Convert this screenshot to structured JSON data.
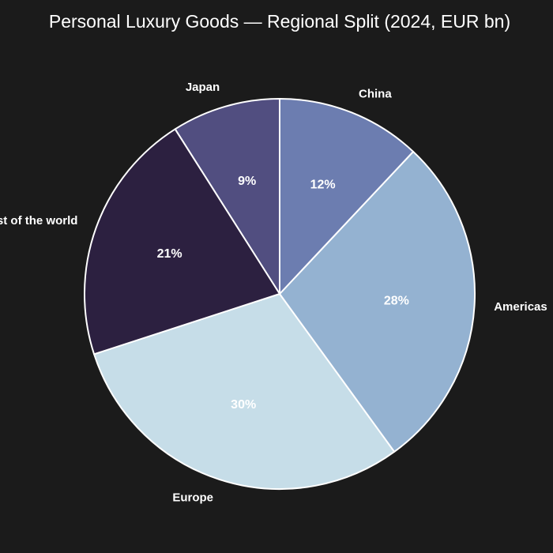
{
  "chart_data": {
    "type": "pie",
    "title": "Personal Luxury Goods — Regional Split (2024, EUR bn)",
    "slices": [
      {
        "label": "Europe",
        "value": 30,
        "pct_label": "30%",
        "color": "#c6dde8"
      },
      {
        "label": "Americas",
        "value": 28,
        "pct_label": "28%",
        "color": "#94b2d1"
      },
      {
        "label": "China",
        "value": 12,
        "pct_label": "12%",
        "color": "#6c7db0"
      },
      {
        "label": "Japan",
        "value": 9,
        "pct_label": "9%",
        "color": "#514e80"
      },
      {
        "label": "Rest of the world",
        "value": 21,
        "pct_label": "21%",
        "color": "#2c2040"
      }
    ],
    "edge_color": "#ffffff",
    "background": "#1b1b1b",
    "legend": "none"
  }
}
